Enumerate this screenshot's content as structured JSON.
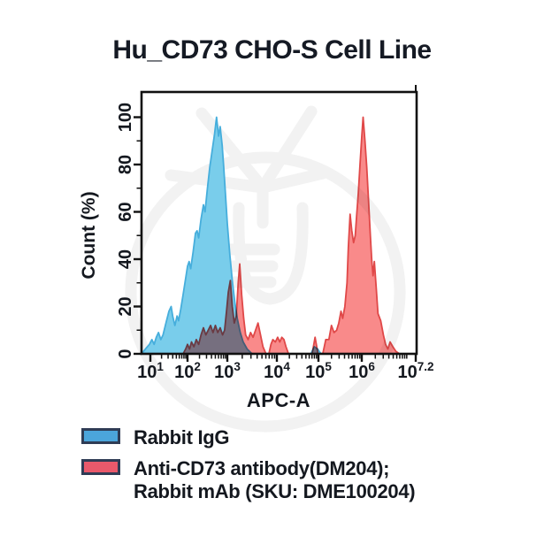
{
  "title": "Hu_CD73 CHO-S Cell Line",
  "colors": {
    "background": "#ffffff",
    "axis": "#111111",
    "text": "#14181f",
    "blue_fill": "#79CDEB",
    "blue_stroke": "#46AEDC",
    "red_fill": "#F98A8A",
    "red_stroke": "#E04848",
    "overlap": "#76889F",
    "legend_blue": "#4BA5DB",
    "legend_red": "#E9596B",
    "legend_border": "#2F3C55",
    "watermark": "#F2F2F2"
  },
  "legend": {
    "items": [
      {
        "label_line1": "Rabbit IgG",
        "label_line2": "",
        "color": "#4BA5DB"
      },
      {
        "label_line1": "Anti-CD73 antibody(DM204);",
        "label_line2": "Rabbit mAb (SKU: DME100204)",
        "color": "#E9596B"
      }
    ]
  },
  "chart_data": {
    "type": "area",
    "subtype": "flow-cytometry-histogram-overlay",
    "title": "Hu_CD73 CHO-S Cell Line",
    "xlabel": "APC-A",
    "ylabel": "Count (%)",
    "x_scale": "log",
    "xlim_log": [
      0.82,
      7.2
    ],
    "ylim": [
      0,
      100
    ],
    "grid": false,
    "legend_position": "below",
    "x_ticks": [
      {
        "logx": 1,
        "label_base": "10",
        "label_exp": "1"
      },
      {
        "logx": 2,
        "label_base": "10",
        "label_exp": "2"
      },
      {
        "logx": 3,
        "label_base": "10",
        "label_exp": "3"
      },
      {
        "logx": 4,
        "label_base": "10",
        "label_exp": "4"
      },
      {
        "logx": 5,
        "label_base": "10",
        "label_exp": "5"
      },
      {
        "logx": 6,
        "label_base": "10",
        "label_exp": "6"
      },
      {
        "logx": 7.2,
        "label_base": "10",
        "label_exp": "7.2"
      }
    ],
    "y_ticks": [
      0,
      20,
      40,
      60,
      80,
      100
    ],
    "y_minor_ticks": [
      10,
      30,
      50,
      70,
      90
    ],
    "x_axis_anchors": [
      [
        0.82,
        160
      ],
      [
        1,
        170
      ],
      [
        2,
        212
      ],
      [
        3,
        257
      ],
      [
        4,
        313
      ],
      [
        5,
        360
      ],
      [
        6,
        409
      ],
      [
        7.2,
        470
      ]
    ],
    "series": [
      {
        "name": "Rabbit IgG",
        "fill": "#79CDEB",
        "stroke": "#46AEDC",
        "blend": "normal",
        "points": [
          [
            0.82,
            0
          ],
          [
            0.9,
            2
          ],
          [
            0.98,
            4
          ],
          [
            1.04,
            6
          ],
          [
            1.1,
            4
          ],
          [
            1.16,
            7
          ],
          [
            1.22,
            9
          ],
          [
            1.28,
            6
          ],
          [
            1.34,
            8
          ],
          [
            1.42,
            13
          ],
          [
            1.5,
            18
          ],
          [
            1.56,
            20
          ],
          [
            1.6,
            16
          ],
          [
            1.66,
            12
          ],
          [
            1.72,
            16
          ],
          [
            1.76,
            14
          ],
          [
            1.82,
            19
          ],
          [
            1.88,
            25
          ],
          [
            1.94,
            31
          ],
          [
            2.0,
            37
          ],
          [
            2.04,
            39
          ],
          [
            2.08,
            36
          ],
          [
            2.14,
            43
          ],
          [
            2.2,
            51
          ],
          [
            2.24,
            52
          ],
          [
            2.28,
            49
          ],
          [
            2.34,
            57
          ],
          [
            2.4,
            63
          ],
          [
            2.44,
            60
          ],
          [
            2.5,
            70
          ],
          [
            2.56,
            79
          ],
          [
            2.62,
            86
          ],
          [
            2.68,
            93
          ],
          [
            2.73,
            100
          ],
          [
            2.78,
            92
          ],
          [
            2.82,
            96
          ],
          [
            2.87,
            88
          ],
          [
            2.91,
            79
          ],
          [
            2.95,
            68
          ],
          [
            3.0,
            55
          ],
          [
            3.05,
            42
          ],
          [
            3.1,
            31
          ],
          [
            3.15,
            22
          ],
          [
            3.2,
            15
          ],
          [
            3.26,
            9
          ],
          [
            3.32,
            5
          ],
          [
            3.4,
            2
          ],
          [
            3.5,
            0
          ],
          [
            4.82,
            0
          ],
          [
            4.9,
            3
          ],
          [
            4.98,
            2
          ],
          [
            5.06,
            0
          ]
        ]
      },
      {
        "name": "Anti-CD73 antibody(DM204); Rabbit mAb (SKU: DME100204)",
        "fill": "#F98A8A",
        "stroke": "#E04848",
        "blend": "multiply",
        "points": [
          [
            1.88,
            0
          ],
          [
            1.95,
            2
          ],
          [
            2.0,
            4
          ],
          [
            2.05,
            2
          ],
          [
            2.1,
            5
          ],
          [
            2.16,
            3
          ],
          [
            2.22,
            6
          ],
          [
            2.28,
            4
          ],
          [
            2.34,
            8
          ],
          [
            2.4,
            11
          ],
          [
            2.46,
            8
          ],
          [
            2.52,
            10
          ],
          [
            2.58,
            12
          ],
          [
            2.64,
            9
          ],
          [
            2.7,
            12
          ],
          [
            2.76,
            9
          ],
          [
            2.82,
            11
          ],
          [
            2.88,
            8
          ],
          [
            2.93,
            10
          ],
          [
            2.98,
            18
          ],
          [
            3.02,
            26
          ],
          [
            3.06,
            31
          ],
          [
            3.1,
            20
          ],
          [
            3.14,
            13
          ],
          [
            3.18,
            16
          ],
          [
            3.22,
            30
          ],
          [
            3.25,
            38
          ],
          [
            3.29,
            25
          ],
          [
            3.33,
            15
          ],
          [
            3.37,
            8
          ],
          [
            3.42,
            6
          ],
          [
            3.47,
            9
          ],
          [
            3.52,
            7
          ],
          [
            3.57,
            10
          ],
          [
            3.62,
            13
          ],
          [
            3.67,
            8
          ],
          [
            3.72,
            3
          ],
          [
            3.78,
            0
          ],
          [
            3.84,
            0
          ],
          [
            3.88,
            4
          ],
          [
            3.92,
            6
          ],
          [
            3.97,
            5
          ],
          [
            4.02,
            7
          ],
          [
            4.07,
            5
          ],
          [
            4.12,
            7
          ],
          [
            4.17,
            6
          ],
          [
            4.22,
            3
          ],
          [
            4.28,
            0
          ],
          [
            4.85,
            0
          ],
          [
            4.92,
            7
          ],
          [
            4.99,
            0
          ],
          [
            5.1,
            0
          ],
          [
            5.17,
            6
          ],
          [
            5.24,
            6
          ],
          [
            5.3,
            12
          ],
          [
            5.36,
            9
          ],
          [
            5.42,
            10
          ],
          [
            5.47,
            13
          ],
          [
            5.52,
            18
          ],
          [
            5.56,
            15
          ],
          [
            5.61,
            20
          ],
          [
            5.66,
            30
          ],
          [
            5.69,
            45
          ],
          [
            5.73,
            59
          ],
          [
            5.77,
            52
          ],
          [
            5.81,
            47
          ],
          [
            5.85,
            50
          ],
          [
            5.88,
            58
          ],
          [
            5.92,
            68
          ],
          [
            5.96,
            80
          ],
          [
            6.0,
            92
          ],
          [
            6.03,
            100
          ],
          [
            6.07,
            90
          ],
          [
            6.11,
            79
          ],
          [
            6.15,
            65
          ],
          [
            6.19,
            50
          ],
          [
            6.22,
            40
          ],
          [
            6.25,
            33
          ],
          [
            6.28,
            39
          ],
          [
            6.32,
            28
          ],
          [
            6.36,
            17
          ],
          [
            6.42,
            14
          ],
          [
            6.48,
            8
          ],
          [
            6.53,
            4
          ],
          [
            6.58,
            2
          ],
          [
            6.63,
            5
          ],
          [
            6.69,
            3
          ],
          [
            6.76,
            1
          ],
          [
            6.84,
            0
          ]
        ]
      }
    ]
  }
}
